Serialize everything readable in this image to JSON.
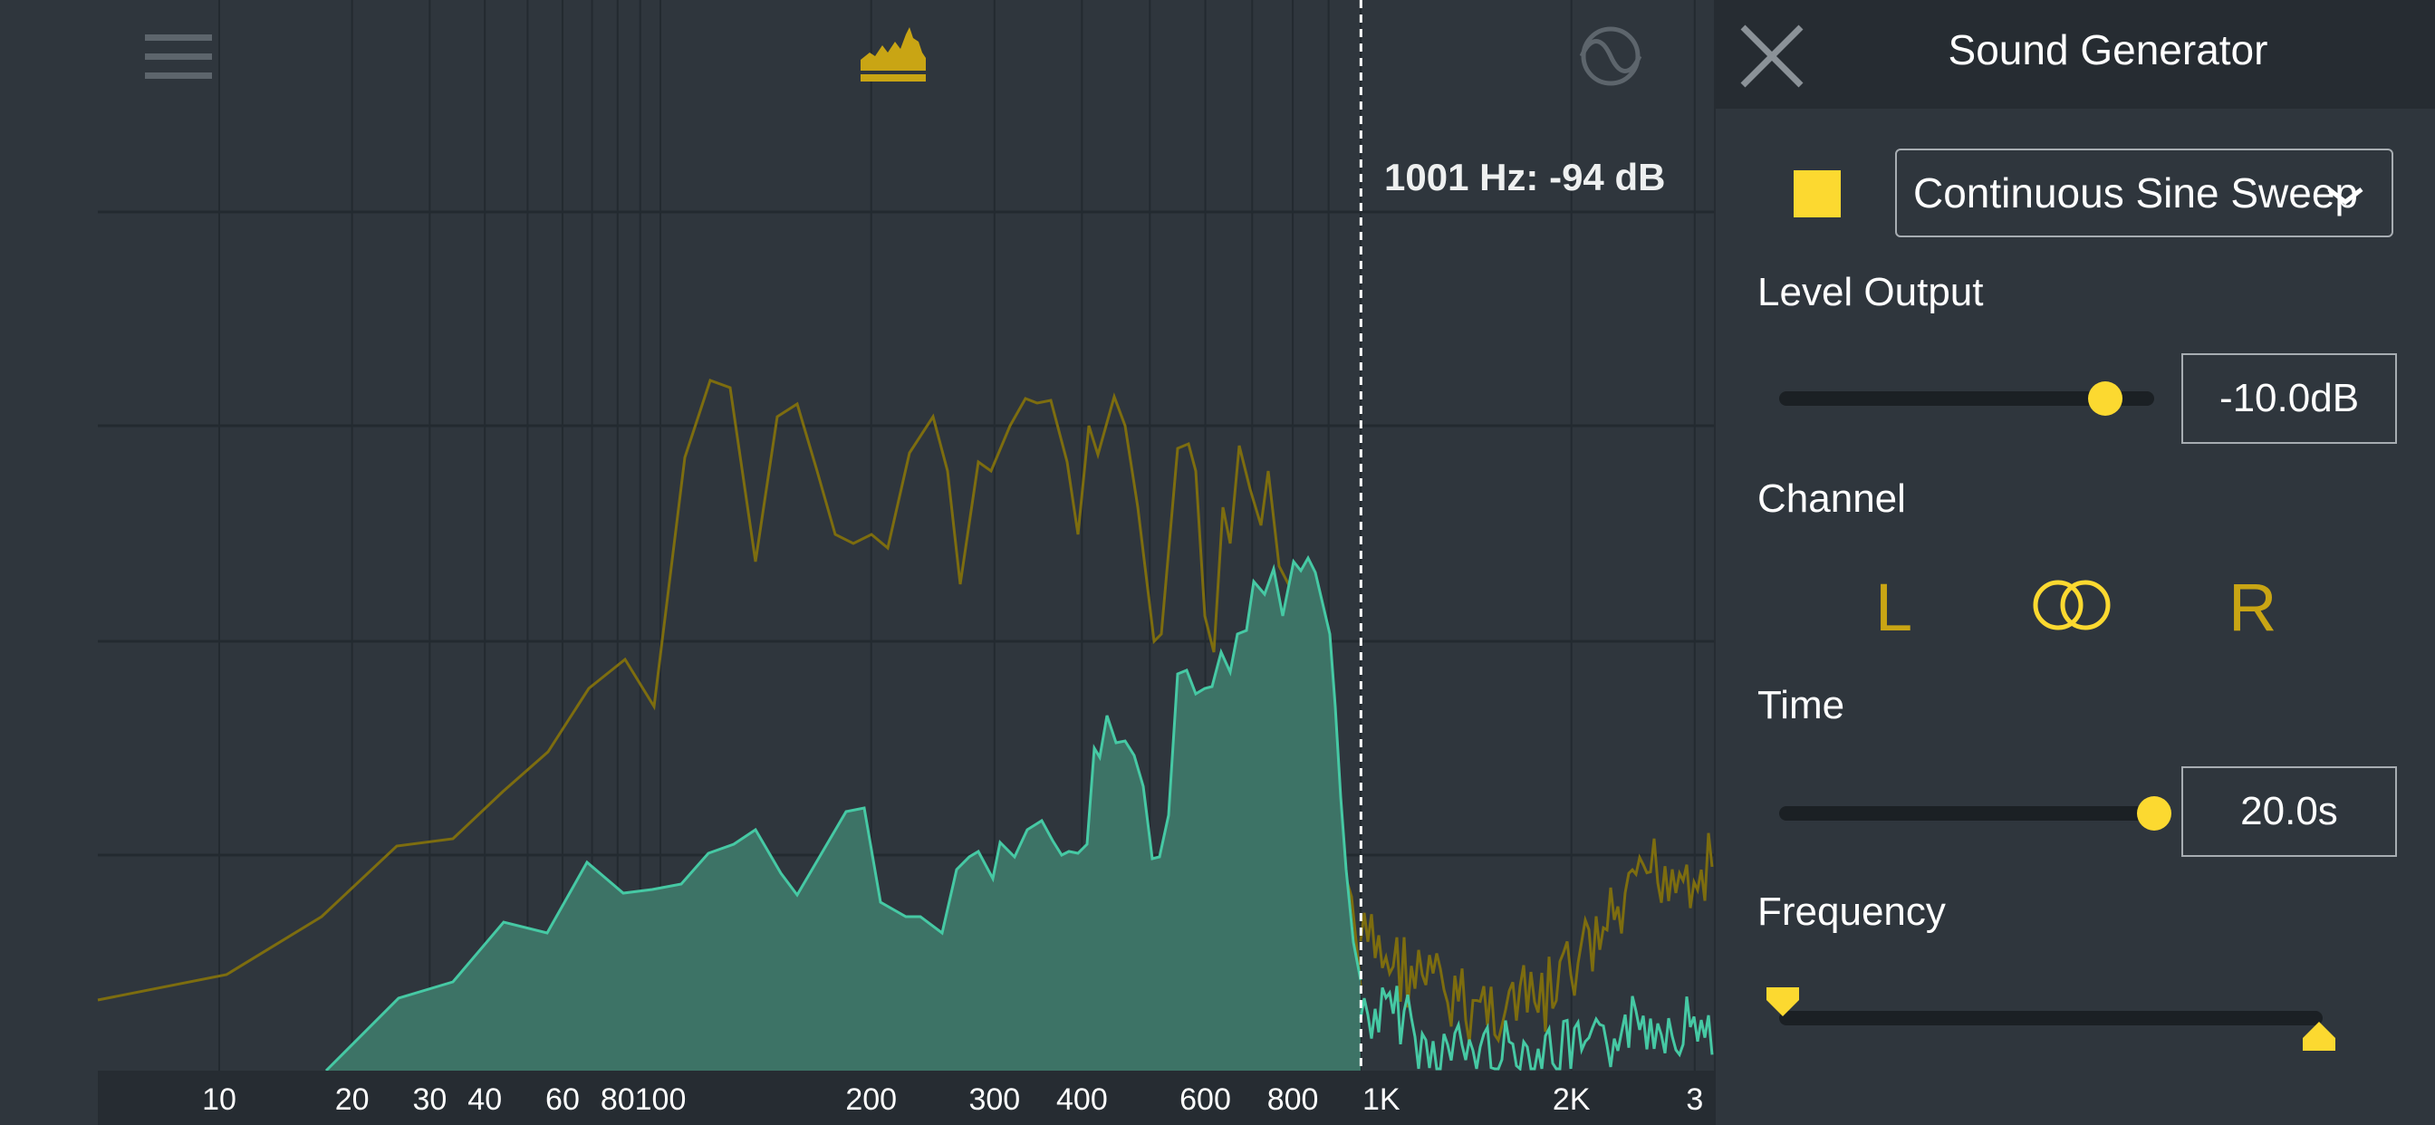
{
  "toolbar": {
    "menu_icon": "hamburger-menu-icon",
    "spectrum_icon": "spectrum-view-icon",
    "generator_icon": "sine-wave-generator-icon"
  },
  "analyzer": {
    "cursor_readout": "1001 Hz: -94 dB",
    "cursor_frequency_hz": 1001,
    "x_axis_ticks": [
      "10",
      "20",
      "30",
      "40",
      "60",
      "80",
      "100",
      "200",
      "300",
      "400",
      "600",
      "800",
      "1K",
      "2K",
      "3"
    ],
    "x_axis_tick_values_hz": [
      10,
      20,
      30,
      40,
      60,
      80,
      100,
      200,
      300,
      400,
      600,
      800,
      1000,
      2000,
      3000
    ],
    "colors": {
      "background": "#2f363d",
      "grid": "#232a30",
      "peak_hold": "#7d6d0f",
      "live_fill": "#3d7366",
      "live_line": "#46c9a4",
      "accent": "#fcd930"
    }
  },
  "panel": {
    "title": "Sound Generator",
    "close_icon": "close-icon",
    "play_state": "stop",
    "generator_type": "Continuous Sine Sweep",
    "level": {
      "label": "Level Output",
      "value": "-10.0dB",
      "slider_fraction": 0.87
    },
    "channel": {
      "label": "Channel",
      "left": "L",
      "right": "R",
      "both_icon": "stereo-both-icon"
    },
    "time": {
      "label": "Time",
      "value": "20.0s",
      "slider_fraction": 1.0
    },
    "frequency": {
      "label": "Frequency",
      "low_fraction": 0.0,
      "high_fraction": 1.0
    }
  }
}
